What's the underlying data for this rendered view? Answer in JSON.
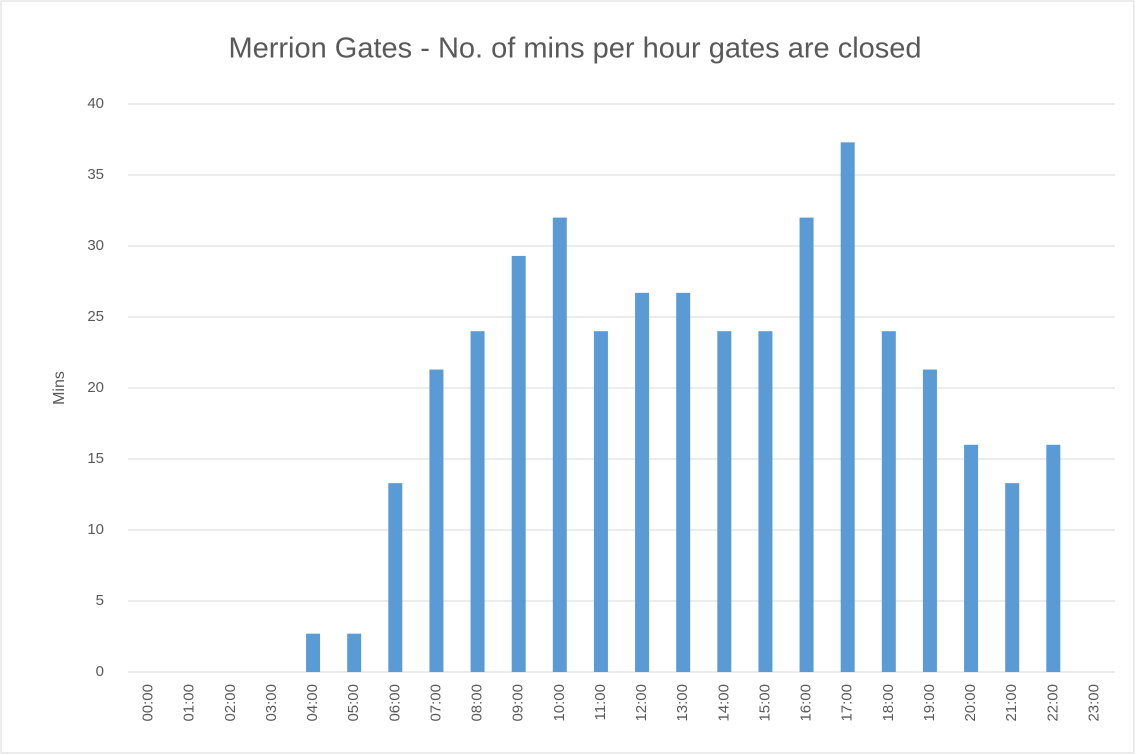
{
  "chart_data": {
    "type": "bar",
    "title": "Merrion Gates - No. of mins per hour gates are closed",
    "y_label": "Mins",
    "categories": [
      "00:00",
      "01:00",
      "02:00",
      "03:00",
      "04:00",
      "05:00",
      "06:00",
      "07:00",
      "08:00",
      "09:00",
      "10:00",
      "11:00",
      "12:00",
      "13:00",
      "14:00",
      "15:00",
      "16:00",
      "17:00",
      "18:00",
      "19:00",
      "20:00",
      "21:00",
      "22:00",
      "23:00"
    ],
    "values": [
      0,
      0,
      0,
      0,
      2.7,
      2.7,
      13.3,
      21.3,
      24,
      29.3,
      32,
      24,
      26.7,
      26.7,
      24,
      24,
      32,
      37.3,
      24,
      21.3,
      16,
      13.3,
      16,
      0
    ],
    "color": "#5b9bd5",
    "ylim": [
      0,
      40
    ],
    "yticks": [
      0,
      5,
      10,
      15,
      20,
      25,
      30,
      35,
      40
    ],
    "grid": true
  }
}
